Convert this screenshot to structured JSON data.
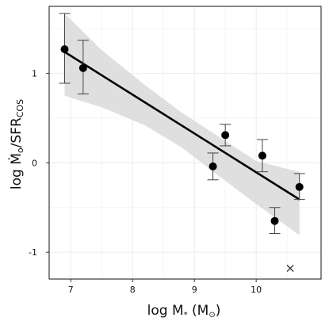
{
  "chart_data": {
    "type": "scatter",
    "xlabel": "log M* (M⊙)",
    "ylabel": "log Ṁo / SFR_COS",
    "xlim": [
      6.65,
      11.05
    ],
    "ylim": [
      -1.3,
      1.75
    ],
    "xticks": [
      "7",
      "8",
      "9",
      "10"
    ],
    "xtick_values": [
      7,
      8,
      9,
      10
    ],
    "yticks": [
      "-1",
      "0",
      "1"
    ],
    "ytick_values": [
      -1,
      0,
      1
    ],
    "grid": true,
    "points": [
      {
        "x": 6.9,
        "y": 1.27,
        "yerr_low": 0.38,
        "yerr_high": 0.4
      },
      {
        "x": 7.2,
        "y": 1.06,
        "yerr_low": 0.29,
        "yerr_high": 0.31
      },
      {
        "x": 9.3,
        "y": -0.04,
        "yerr_low": 0.15,
        "yerr_high": 0.15
      },
      {
        "x": 9.5,
        "y": 0.31,
        "yerr_low": 0.12,
        "yerr_high": 0.12
      },
      {
        "x": 10.1,
        "y": 0.08,
        "yerr_low": 0.18,
        "yerr_high": 0.18
      },
      {
        "x": 10.3,
        "y": -0.65,
        "yerr_low": 0.14,
        "yerr_high": 0.15
      },
      {
        "x": 10.7,
        "y": -0.27,
        "yerr_low": 0.14,
        "yerr_high": 0.15
      }
    ],
    "fit_line": {
      "x": [
        6.9,
        10.7
      ],
      "y": [
        1.24,
        -0.41
      ]
    },
    "confidence_band": {
      "x": [
        6.9,
        7.5,
        8.2,
        8.8,
        9.4,
        10.0,
        10.7
      ],
      "upper": [
        1.67,
        1.26,
        0.87,
        0.56,
        0.29,
        0.02,
        -0.1
      ],
      "lower": [
        0.75,
        0.62,
        0.42,
        0.17,
        -0.15,
        -0.46,
        -0.81
      ]
    },
    "outlier_marker": {
      "x": 10.55,
      "y": -1.18,
      "symbol": "×"
    }
  }
}
